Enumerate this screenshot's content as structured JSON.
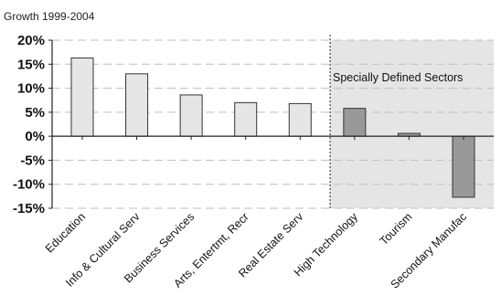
{
  "chart_data": {
    "type": "bar",
    "title": "Growth 1999-2004",
    "xlabel": "",
    "ylabel": "",
    "ylim": [
      -15,
      20
    ],
    "yticks": [
      20,
      15,
      10,
      5,
      0,
      -5,
      -10,
      -15
    ],
    "ytick_labels": [
      "20%",
      "15%",
      "10%",
      "5%",
      "0%",
      "-5%",
      "-10%",
      "-15%"
    ],
    "categories": [
      "Education",
      "Info & Cultural Serv",
      "Business Services",
      "Arts, Entertmt, Recr",
      "Real Estate Serv",
      "High Technology",
      "Tourism",
      "Secondary Manufac"
    ],
    "values": [
      16.3,
      13.0,
      8.6,
      7.0,
      6.8,
      5.8,
      0.6,
      -12.7
    ],
    "grid": true,
    "bar_colors": [
      "#e6e6e6",
      "#e6e6e6",
      "#e6e6e6",
      "#e6e6e6",
      "#e6e6e6",
      "#999999",
      "#999999",
      "#999999"
    ],
    "annotation": "Specially Defined Sectors",
    "highlight_region_color": "#e5e5e5"
  }
}
